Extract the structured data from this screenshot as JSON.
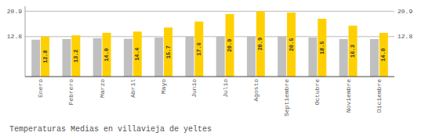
{
  "chart_data": {
    "type": "bar",
    "title": "Temperaturas Medias en villavieja de yeltes",
    "categories": [
      "Enero",
      "Febrero",
      "Marzo",
      "Abril",
      "Mayo",
      "Junio",
      "Julio",
      "Agosto",
      "Septiembre",
      "Octubre",
      "Noviembre",
      "Diciembre"
    ],
    "series": [
      {
        "color": "#C0C0C0",
        "values": [
          11.8,
          12.0,
          12.3,
          12.1,
          12.5,
          12.8,
          12.8,
          12.8,
          12.8,
          12.5,
          12.0,
          12.0
        ]
      },
      {
        "color": "#FFD000",
        "values": [
          12.8,
          13.2,
          14.0,
          14.4,
          15.7,
          17.6,
          20.0,
          20.9,
          20.5,
          18.5,
          16.3,
          14.0
        ],
        "data_labels": true,
        "value_labels": [
          "12.8",
          "13.2",
          "14.0",
          "14.4",
          "15.7",
          "17.6",
          "20.0",
          "20.9",
          "20.5",
          "18.5",
          "16.3",
          "14.0"
        ]
      }
    ],
    "ylim": [
      0,
      22.5
    ],
    "yticks": [
      12.8,
      20.9
    ],
    "grid": true
  }
}
